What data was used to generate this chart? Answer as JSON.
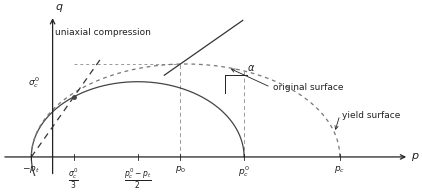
{
  "fig_width": 4.22,
  "fig_height": 1.94,
  "dpi": 100,
  "bg_color": "#ffffff",
  "pt": 0.4,
  "sigma_c0": 1.2,
  "pc0": 3.6,
  "pc": 5.4,
  "p0": 2.4,
  "axis_color": "#222222",
  "ellipse_solid_color": "#444444",
  "ellipse_dot_color": "#777777",
  "line_color": "#333333",
  "dashed_color": "#999999",
  "sc0_label": "\\frac{\\sigma_c^0}{3}",
  "center_label": "\\frac{p_c^0-p_t}{2}",
  "p0_label": "p_0",
  "pc0_label": "p_c^0",
  "pc_label": "p_c",
  "pt_label": "-p_t",
  "q_label": "q",
  "p_label": "p",
  "sigma_label": "\\sigma_c^0",
  "alpha_label": "\\alpha",
  "uniaxial_label": "uniaxial compression",
  "original_label": "original surface",
  "yield_label": "yield surface"
}
